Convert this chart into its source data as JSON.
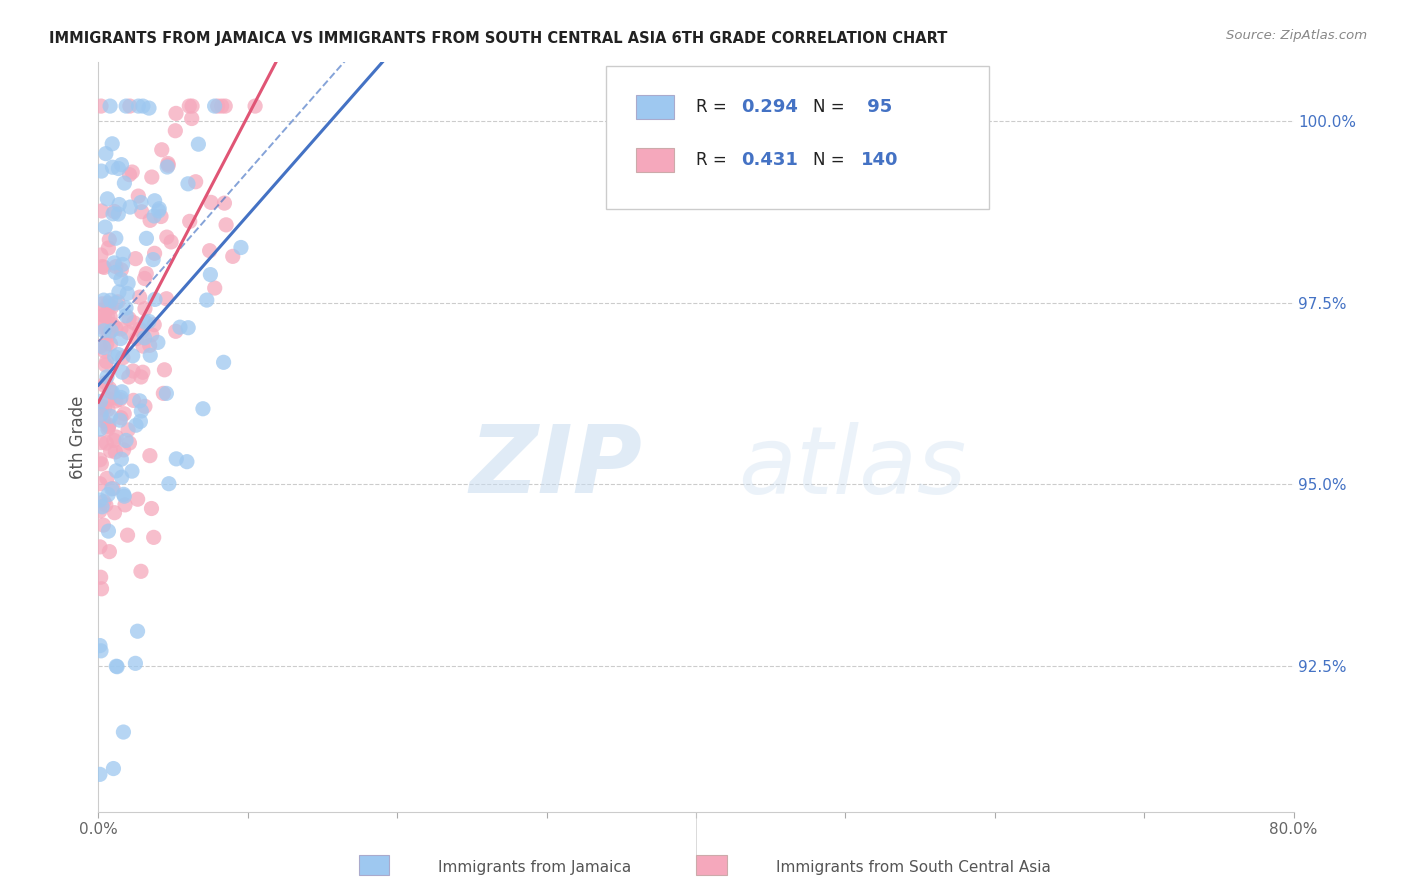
{
  "title": "IMMIGRANTS FROM JAMAICA VS IMMIGRANTS FROM SOUTH CENTRAL ASIA 6TH GRADE CORRELATION CHART",
  "source": "Source: ZipAtlas.com",
  "ylabel": "6th Grade",
  "yaxis_labels": [
    "92.5%",
    "95.0%",
    "97.5%",
    "100.0%"
  ],
  "yaxis_values": [
    0.925,
    0.95,
    0.975,
    1.0
  ],
  "xmin": 0.0,
  "xmax": 0.8,
  "ymin": 0.905,
  "ymax": 1.008,
  "jamaica_color": "#9EC8F0",
  "sca_color": "#F5A8BC",
  "jamaica_line_color": "#4472C4",
  "sca_line_color": "#E05575",
  "jamaica_R": 0.294,
  "jamaica_N": 95,
  "sca_R": 0.431,
  "sca_N": 140,
  "legend_label_jamaica": "Immigrants from Jamaica",
  "legend_label_sca": "Immigrants from South Central Asia",
  "grid_color": "#CCCCCC",
  "title_color": "#222222",
  "accent_color": "#4472C4",
  "watermark_color": "#C8DCF0"
}
